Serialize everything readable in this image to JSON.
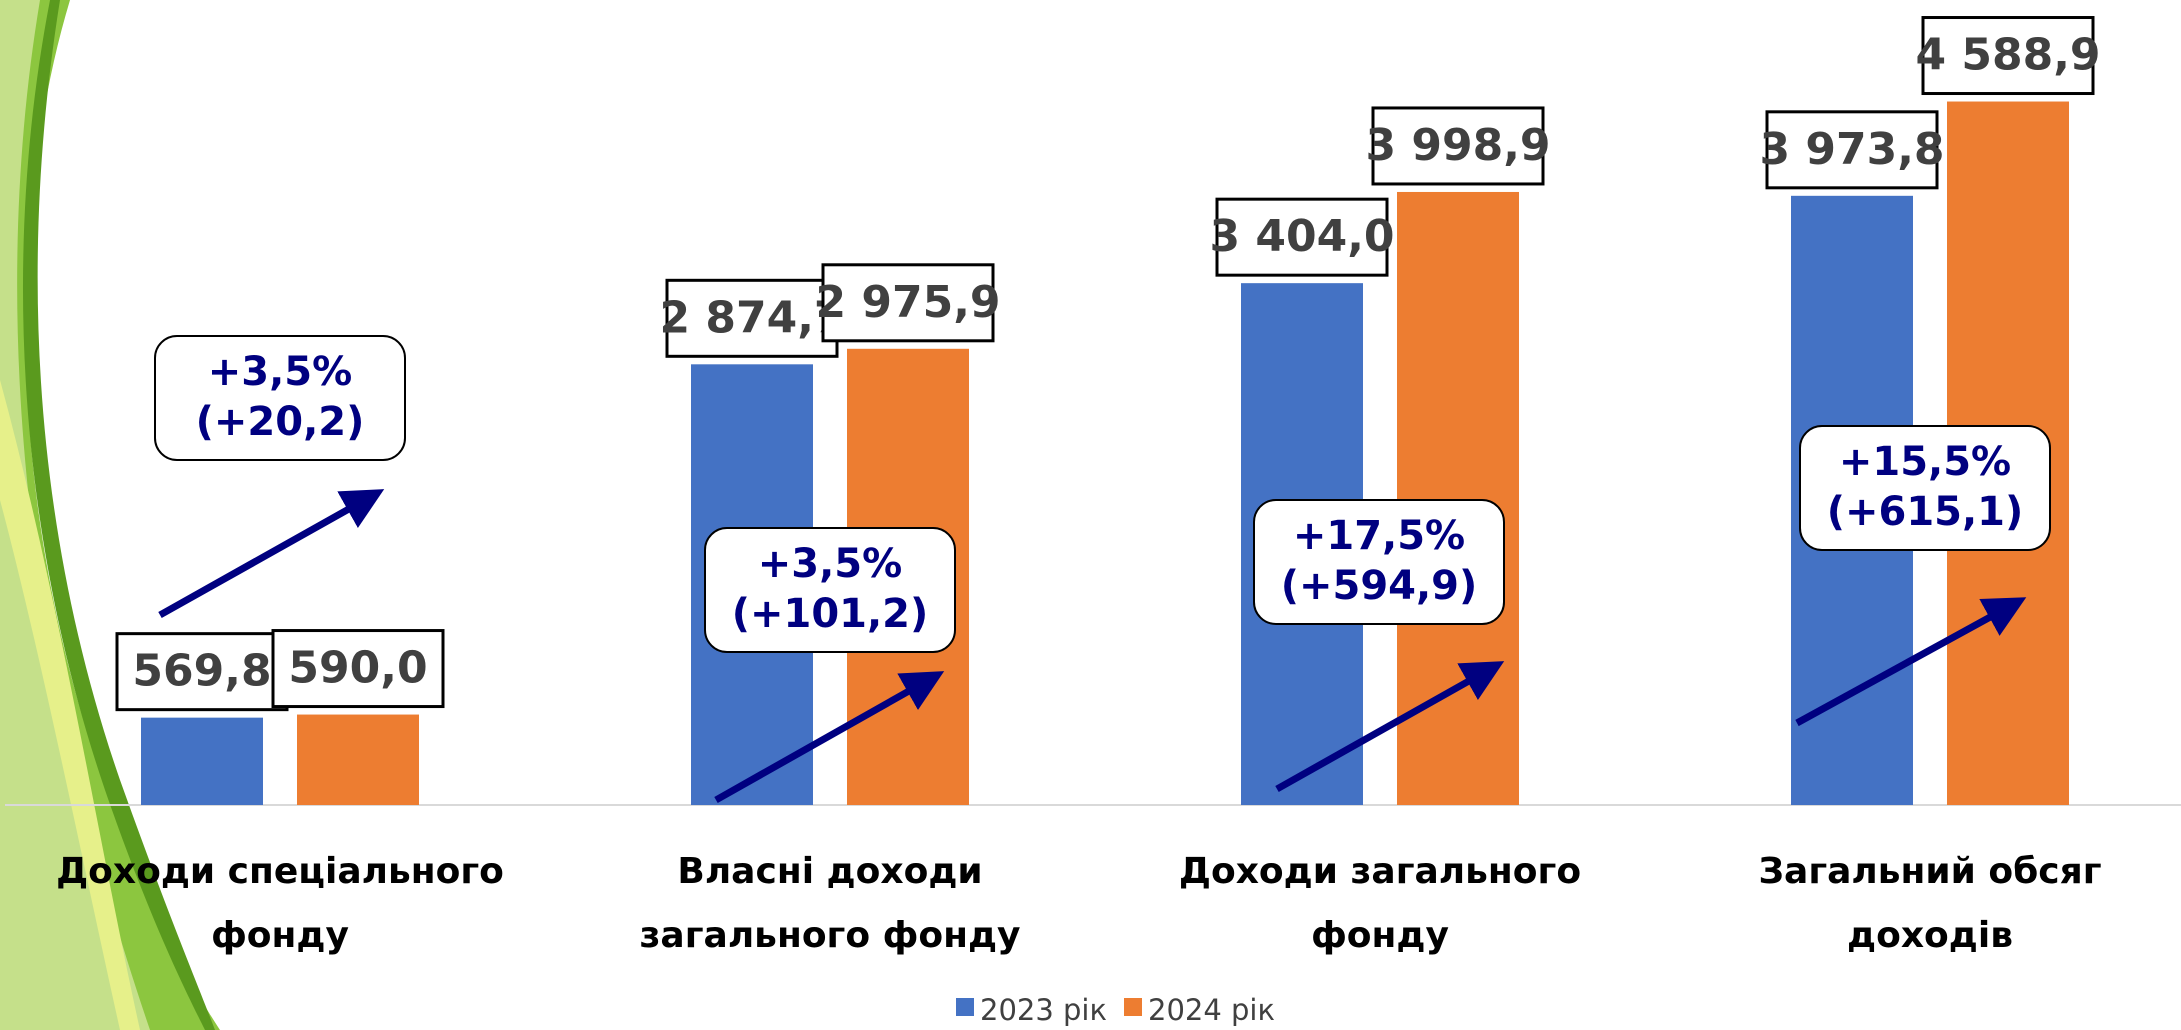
{
  "chart_data": {
    "type": "bar",
    "categories": [
      "Доходи спеціального фонду",
      "Власні доходи загального фонду",
      "Доходи загального фонду",
      "Загальний обсяг доходів"
    ],
    "series": [
      {
        "name": "2023 рік",
        "color": "#4472c4",
        "values": [
          569.8,
          2874.7,
          3404.0,
          3973.8
        ],
        "value_labels": [
          "569,8",
          "2 874,7",
          "3 404,0",
          "3 973,8"
        ]
      },
      {
        "name": "2024 рік",
        "color": "#ed7d31",
        "values": [
          590.0,
          2975.9,
          3998.9,
          4588.9
        ],
        "value_labels": [
          "590,0",
          "2 975,9",
          "3 998,9",
          "4 588,9"
        ]
      }
    ],
    "annotations": [
      [
        "+3,5%",
        "(+20,2)"
      ],
      [
        "+3,5%",
        "(+101,2)"
      ],
      [
        "+17,5%",
        "(+594,9)"
      ],
      [
        "+15,5%",
        "(+615,1)"
      ]
    ],
    "ylim": [
      0,
      5000
    ]
  }
}
